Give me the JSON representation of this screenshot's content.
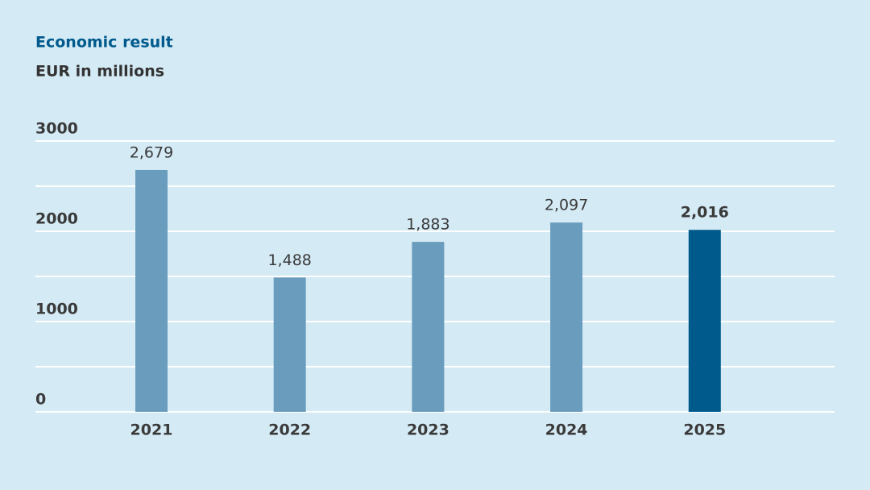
{
  "chart_data": {
    "type": "bar",
    "title": "Economic result",
    "subtitle": "EUR in millions",
    "categories": [
      "2021",
      "2022",
      "2023",
      "2024",
      "2025"
    ],
    "values": [
      2679,
      1488,
      1883,
      2097,
      2016
    ],
    "value_labels": [
      "2,679",
      "1,488",
      "1,883",
      "2,097",
      "2,016"
    ],
    "colors": [
      "#6a9dbd",
      "#6a9dbd",
      "#6a9dbd",
      "#6a9dbd",
      "#005a8c"
    ],
    "highlight": 4,
    "ylim": [
      0,
      3000
    ],
    "yticks": [
      0,
      1000,
      2000,
      3000
    ],
    "yminor": [
      500,
      1500,
      2500
    ],
    "grid": true
  }
}
